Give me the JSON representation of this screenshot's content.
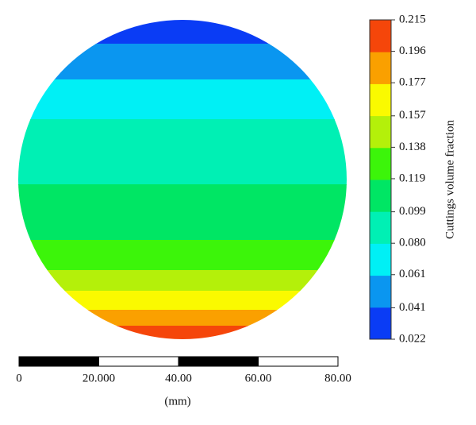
{
  "chart_data": {
    "type": "contour",
    "colorbar": {
      "title": "Cuttings volume fraction",
      "ylim": [
        0.022,
        0.215
      ],
      "yticks": [
        0.022,
        0.041,
        0.061,
        {
          "value": 0.08,
          "label": "0.080"
        },
        0.099,
        0.119,
        0.138,
        0.157,
        0.177,
        0.196,
        0.215
      ],
      "colors": [
        "#0a3cf5",
        "#0a96f0",
        "#00f0f5",
        "#00f0b4",
        "#00e664",
        "#3cf50a",
        "#b4f00a",
        "#fafa00",
        "#faa000",
        "#f5460a"
      ]
    },
    "scale_bar": {
      "xlim": [
        0,
        80
      ],
      "xticks": [
        0,
        {
          "value": 20,
          "label": "20.000"
        },
        {
          "value": 40,
          "label": "40.00"
        },
        {
          "value": 60,
          "label": "60.00"
        },
        {
          "value": 80,
          "label": "80.00"
        }
      ],
      "unit": "(mm)"
    }
  }
}
